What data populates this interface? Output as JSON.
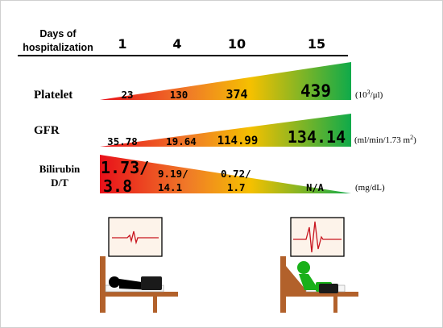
{
  "header": {
    "days_label_line1": "Days of",
    "days_label_line2": "hospitalization",
    "days": [
      "1",
      "4",
      "10",
      "15"
    ]
  },
  "rows": {
    "platelet": {
      "label": "Platelet",
      "unit_prefix": "(10",
      "unit_sup": "3",
      "unit_suffix": "/μl)",
      "values": [
        "23",
        "130",
        "374",
        "439"
      ],
      "trend": "increasing"
    },
    "gfr": {
      "label": "GFR",
      "unit_prefix": "(ml/min/1.73 m",
      "unit_sup": "2",
      "unit_suffix": ")",
      "values": [
        "35.78",
        "19.64",
        "114.99",
        "134.14"
      ],
      "trend": "increasing"
    },
    "bilirubin": {
      "label_line1": "Bilirubin",
      "label_line2": "D/T",
      "unit": "(mg/dL)",
      "values_line1": [
        "1.73/",
        "9.19/",
        "0.72/",
        "N/A"
      ],
      "values_line2": [
        "3.8",
        "14.1",
        "1.7",
        ""
      ],
      "trend": "decreasing"
    }
  },
  "gradient_colors": [
    "#e8101a",
    "#f07a28",
    "#f5c000",
    "#0faa4a"
  ],
  "patients": {
    "early": {
      "posture": "lying",
      "figure_color": "#000000"
    },
    "late": {
      "posture": "sitting",
      "figure_color": "#19b019"
    }
  },
  "colors": {
    "bed_wood": "#b2612b",
    "monitor_bg": "#fdf3ea",
    "ecg_line": "#c8141e"
  }
}
